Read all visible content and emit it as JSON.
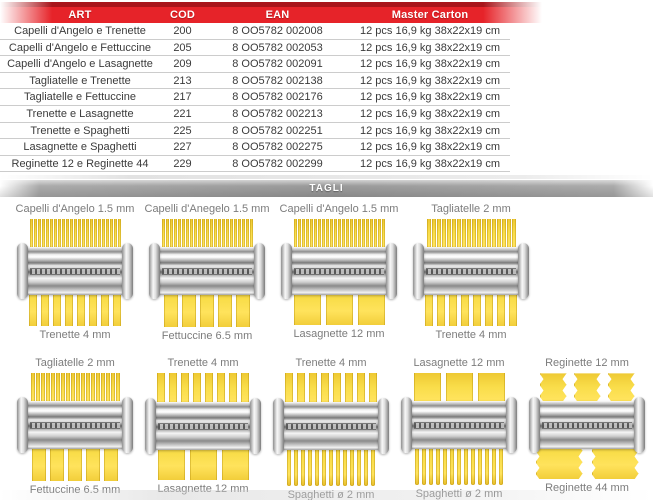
{
  "table": {
    "headers": [
      "ART",
      "COD",
      "EAN",
      "Master Carton"
    ],
    "rows": [
      [
        "Capelli d'Angelo e Trenette",
        "200",
        "8 OO5782 002008",
        "12 pcs 16,9 kg 38x22x19 cm"
      ],
      [
        "Capelli d'Angelo e Fettuccine",
        "205",
        "8 OO5782 002053",
        "12 pcs 16,9 kg 38x22x19 cm"
      ],
      [
        "Capelli d'Angelo e Lasagnette",
        "209",
        "8 OO5782 002091",
        "12 pcs 16,9 kg 38x22x19 cm"
      ],
      [
        "Tagliatelle e Trenette",
        "213",
        "8 OO5782 002138",
        "12 pcs 16,9 kg 38x22x19 cm"
      ],
      [
        "Tagliatelle e Fettuccine",
        "217",
        "8 OO5782 002176",
        "12 pcs 16,9 kg 38x22x19 cm"
      ],
      [
        "Trenette e Lasagnette",
        "221",
        "8 OO5782 002213",
        "12 pcs 16,9 kg 38x22x19 cm"
      ],
      [
        "Trenette e Spaghetti",
        "225",
        "8 OO5782 002251",
        "12 pcs 16,9 kg 38x22x19 cm"
      ],
      [
        "Lasagnette e Spaghetti",
        "227",
        "8 OO5782 002275",
        "12 pcs 16,9 kg 38x22x19 cm"
      ],
      [
        "Reginette 12 e Reginette 44",
        "229",
        "8 OO5782 002299",
        "12 pcs 16,9 kg 38x22x19 cm"
      ]
    ]
  },
  "section": {
    "tagli_label": "TAGLI"
  },
  "tagli": {
    "row1": [
      {
        "top_label": "Capelli d'Angelo 1.5 mm",
        "bottom_label": "Trenette 4 mm",
        "top_cut": "capelli",
        "bottom_cut": "trenette"
      },
      {
        "top_label": "Capelli d'Anegelo 1.5 mm",
        "bottom_label": "Fettuccine 6.5 mm",
        "top_cut": "capelli",
        "bottom_cut": "fettuccine"
      },
      {
        "top_label": "Capelli d'Angelo 1.5 mm",
        "bottom_label": "Lasagnette 12 mm",
        "top_cut": "capelli",
        "bottom_cut": "lasagnette"
      },
      {
        "top_label": "Tagliatelle 2 mm",
        "bottom_label": "Trenette 4 mm",
        "top_cut": "tagliatelle",
        "bottom_cut": "trenette"
      }
    ],
    "row2": [
      {
        "top_label": "Tagliatelle 2 mm",
        "bottom_label": "Fettuccine 6.5 mm",
        "top_cut": "tagliatelle",
        "bottom_cut": "fettuccine"
      },
      {
        "top_label": "Trenette 4 mm",
        "bottom_label": "Lasagnette 12 mm",
        "top_cut": "trenette",
        "bottom_cut": "lasagnette"
      },
      {
        "top_label": "Trenette 4 mm",
        "bottom_label": "Spaghetti ø 2 mm",
        "top_cut": "trenette",
        "bottom_cut": "spaghetti"
      },
      {
        "top_label": "Lasagnette 12 mm",
        "bottom_label": "Spaghetti ø 2 mm",
        "top_cut": "lasagnette",
        "bottom_cut": "spaghetti"
      },
      {
        "top_label": "Reginette 12 mm",
        "bottom_label": "Reginette 44 mm",
        "top_cut": "reginette12",
        "bottom_cut": "reginette44"
      }
    ]
  },
  "colors": {
    "header_red": "#e62329",
    "header_dark_red": "#a8151b",
    "tagli_gray": "#9a9a9a",
    "pasta_yellow": "#f9dd4a",
    "table_text": "#3b3b3b"
  }
}
